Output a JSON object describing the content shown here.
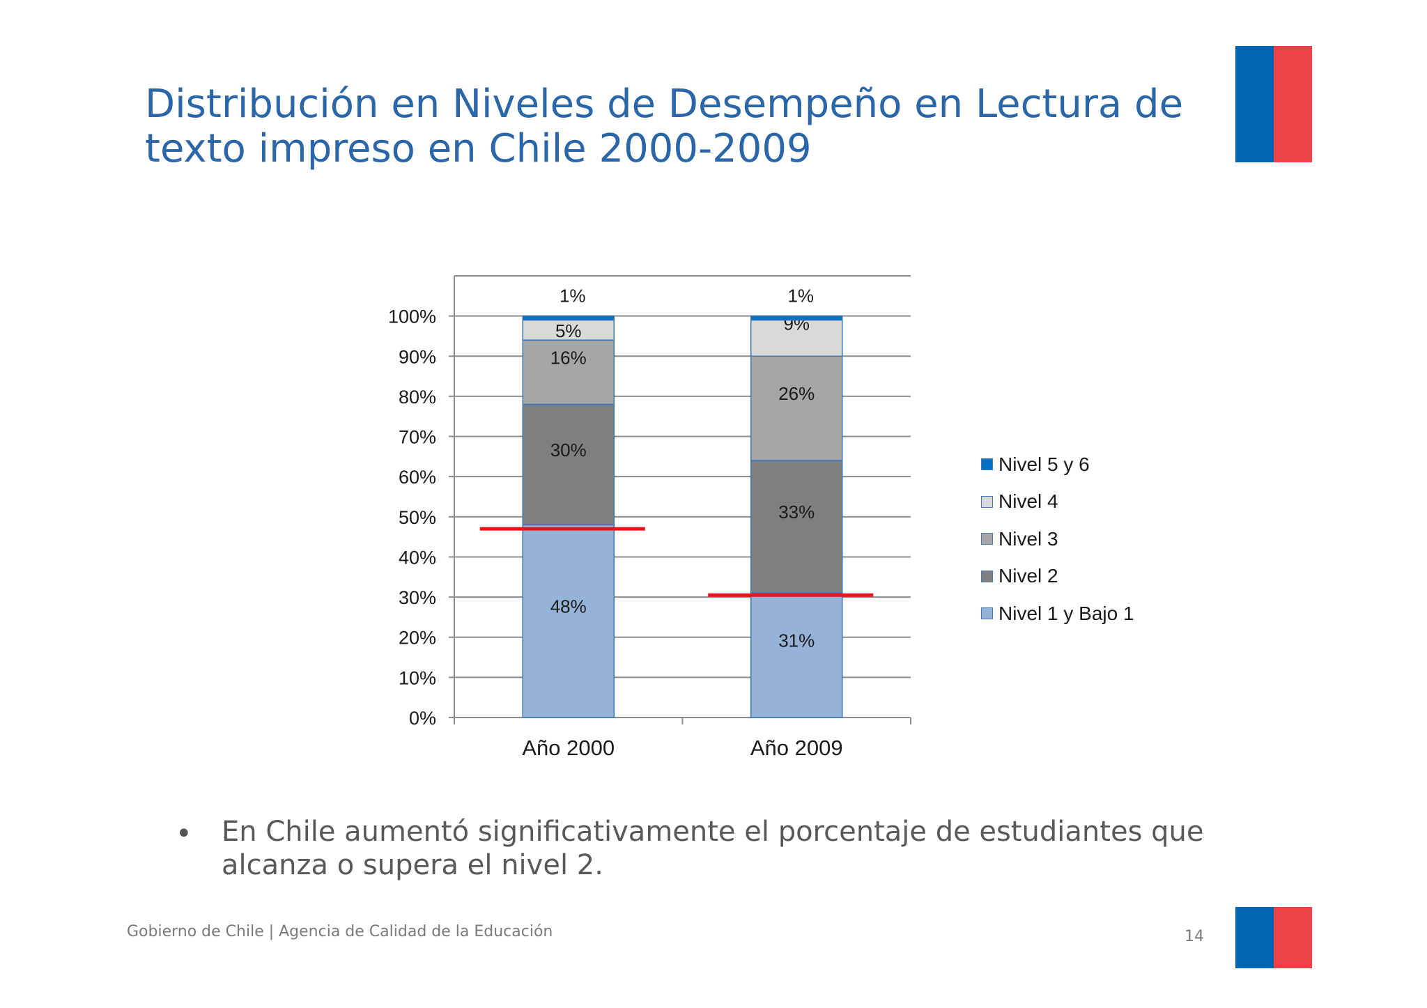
{
  "title_line1": "Distribución en Niveles de Desempeño en Lectura de",
  "title_line2": "texto impreso en Chile 2000-2009",
  "chart_data": {
    "type": "bar",
    "stacked": true,
    "categories": [
      "Año 2000",
      "Año 2009"
    ],
    "series": [
      {
        "name": "Nivel 1 y Bajo 1",
        "color": "#95b3d7",
        "values": [
          48,
          31
        ],
        "labels": [
          "48%",
          "31%"
        ]
      },
      {
        "name": "Nivel 2",
        "color": "#7f7f7f",
        "values": [
          30,
          33
        ],
        "labels": [
          "30%",
          "33%"
        ]
      },
      {
        "name": "Nivel 3",
        "color": "#a6a6a6",
        "values": [
          16,
          26
        ],
        "labels": [
          "16%",
          "26%"
        ]
      },
      {
        "name": "Nivel 4",
        "color": "#d9d9d9",
        "values": [
          5,
          9
        ],
        "labels": [
          "5%",
          "9%"
        ]
      },
      {
        "name": "Nivel 5 y 6",
        "color": "#0070c0",
        "values": [
          1,
          1
        ],
        "labels": [
          "1%",
          "1%"
        ]
      }
    ],
    "y_ticks": [
      "0%",
      "10%",
      "20%",
      "30%",
      "40%",
      "50%",
      "60%",
      "70%",
      "80%",
      "90%",
      "100%"
    ],
    "ylim": [
      0,
      110
    ],
    "grid": true,
    "legend": "right",
    "reference_lines": [
      {
        "category": "Año 2000",
        "value": 47,
        "color": "#e8141b"
      },
      {
        "category": "Año 2009",
        "value": 30.5,
        "color": "#e8141b"
      }
    ]
  },
  "bullet_symbol": "•",
  "bullet_text": "En Chile aumentó significativamente el porcentaje de estudiantes que alcanza o supera el nivel 2.",
  "footer": "Gobierno de Chile | Agencia de Calidad de la Educación",
  "page_number": "14"
}
